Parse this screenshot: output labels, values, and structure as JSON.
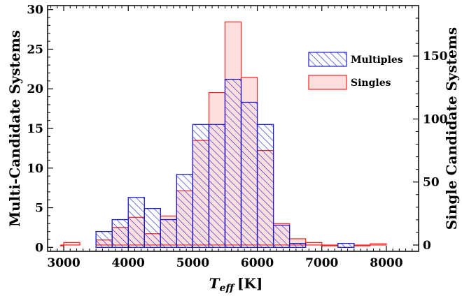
{
  "chart_data": {
    "type": "bar",
    "xlabel_main": "T",
    "xlabel_sub": "eff",
    "xlabel_unit": "[K]",
    "ylabel_left": "Multi-Candidate Systems",
    "ylabel_right": "Single Candidate Systems",
    "xlim": [
      2750,
      8500
    ],
    "ylim_left": [
      -0.5,
      30.5
    ],
    "ylim_right": [
      -5,
      190
    ],
    "bin_width": 250,
    "x_ticks": [
      3000,
      4000,
      5000,
      6000,
      7000,
      8000
    ],
    "y_ticks_left": [
      0,
      5,
      10,
      15,
      20,
      25,
      30
    ],
    "y_ticks_right": [
      0,
      50,
      100,
      150
    ],
    "colors": {
      "multiples": "#1a1acc",
      "singles": "#ff2020",
      "singles_fill": "#ffdede"
    },
    "series": [
      {
        "name": "Multiples",
        "axis": "left",
        "bins": [
          {
            "x0": 3500,
            "value": 2
          },
          {
            "x0": 3750,
            "value": 3.5
          },
          {
            "x0": 4000,
            "value": 6.3
          },
          {
            "x0": 4250,
            "value": 4.9
          },
          {
            "x0": 4500,
            "value": 3.5
          },
          {
            "x0": 4750,
            "value": 9.2
          },
          {
            "x0": 5000,
            "value": 15.5
          },
          {
            "x0": 5250,
            "value": 15.5
          },
          {
            "x0": 5500,
            "value": 21.2
          },
          {
            "x0": 5750,
            "value": 18.3
          },
          {
            "x0": 6000,
            "value": 15.5
          },
          {
            "x0": 6250,
            "value": 2.8
          },
          {
            "x0": 6500,
            "value": 0.5
          },
          {
            "x0": 7250,
            "value": 0.5
          }
        ]
      },
      {
        "name": "Singles",
        "axis": "right",
        "bins": [
          {
            "x0": 2950,
            "value": 0
          },
          {
            "x0": 3000,
            "value": 2
          },
          {
            "x0": 3500,
            "value": 4
          },
          {
            "x0": 3750,
            "value": 14
          },
          {
            "x0": 4000,
            "value": 22
          },
          {
            "x0": 4250,
            "value": 9
          },
          {
            "x0": 4500,
            "value": 23
          },
          {
            "x0": 4750,
            "value": 43
          },
          {
            "x0": 5000,
            "value": 83
          },
          {
            "x0": 5250,
            "value": 121
          },
          {
            "x0": 5500,
            "value": 177
          },
          {
            "x0": 5750,
            "value": 133
          },
          {
            "x0": 6000,
            "value": 75
          },
          {
            "x0": 6250,
            "value": 17
          },
          {
            "x0": 6500,
            "value": 5
          },
          {
            "x0": 6750,
            "value": 2
          },
          {
            "x0": 7000,
            "value": 0
          },
          {
            "x0": 7500,
            "value": 0
          },
          {
            "x0": 7750,
            "value": 1
          }
        ]
      }
    ],
    "legend": {
      "position": "top-right",
      "entries": [
        {
          "label": "Multiples",
          "style": "hatched-blue"
        },
        {
          "label": "Singles",
          "style": "filled-pink"
        }
      ]
    }
  }
}
